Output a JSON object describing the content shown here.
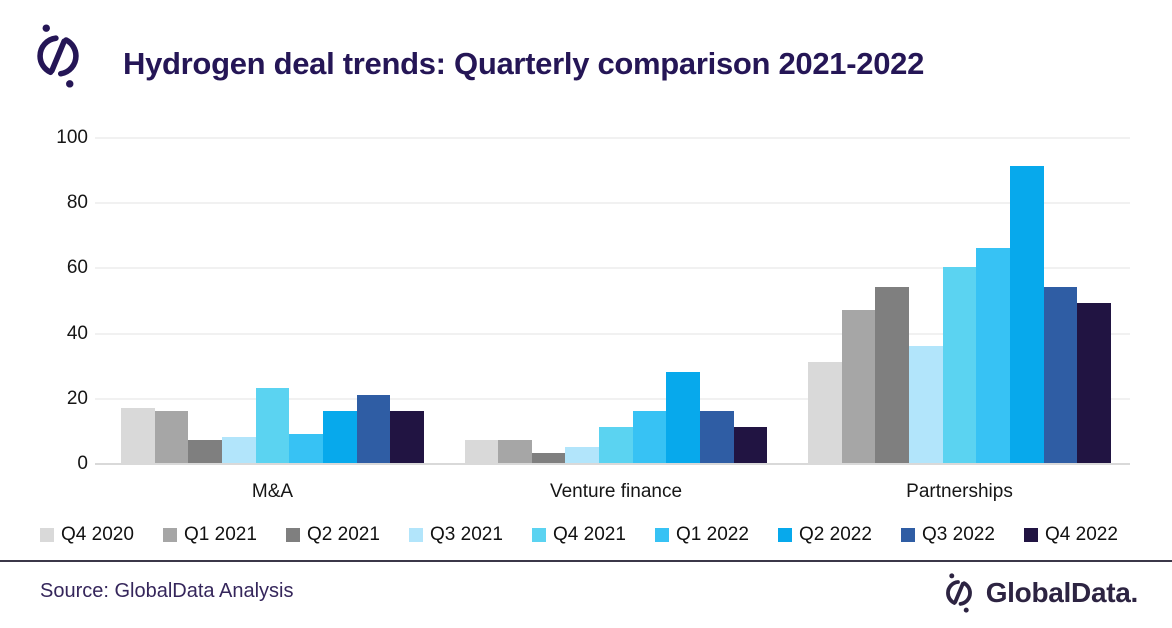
{
  "header": {
    "title": "Hydrogen deal trends: Quarterly comparison 2021-2022",
    "logo": "globaldata-mark-icon"
  },
  "chart_data": {
    "type": "bar",
    "title": "Hydrogen deal trends: Quarterly comparison 2021-2022",
    "categories": [
      "M&A",
      "Venture finance",
      "Partnerships"
    ],
    "series": [
      {
        "name": "Q4 2020",
        "color": "#d9d9d9",
        "values": [
          17,
          7,
          31
        ]
      },
      {
        "name": "Q1 2021",
        "color": "#a6a6a6",
        "values": [
          16,
          7,
          47
        ]
      },
      {
        "name": "Q2 2021",
        "color": "#7f7f7f",
        "values": [
          7,
          3,
          54
        ]
      },
      {
        "name": "Q3 2021",
        "color": "#b2e5fb",
        "values": [
          8,
          5,
          36
        ]
      },
      {
        "name": "Q4 2021",
        "color": "#5bd3f1",
        "values": [
          23,
          11,
          60
        ]
      },
      {
        "name": "Q1 2022",
        "color": "#37c2f4",
        "values": [
          9,
          16,
          66
        ]
      },
      {
        "name": "Q2 2022",
        "color": "#07a9ec",
        "values": [
          16,
          28,
          91
        ]
      },
      {
        "name": "Q3 2022",
        "color": "#2f5da4",
        "values": [
          21,
          16,
          54
        ]
      },
      {
        "name": "Q4 2022",
        "color": "#211442",
        "values": [
          16,
          11,
          49
        ]
      }
    ],
    "xlabel": "",
    "ylabel": "",
    "ylim": [
      0,
      100
    ],
    "yticks": [
      0,
      20,
      40,
      60,
      80,
      100
    ],
    "grid": true,
    "legend_position": "bottom"
  },
  "footer": {
    "source": "Source: GlobalData Analysis",
    "brand": "GlobalData."
  }
}
